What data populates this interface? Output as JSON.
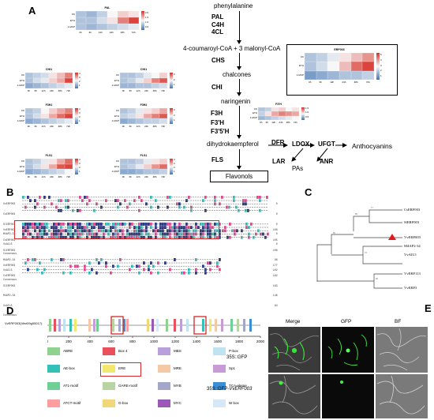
{
  "panels": {
    "A": "A",
    "B": "B",
    "C": "C",
    "D": "D",
    "E": "E"
  },
  "pathway": {
    "phenylalanine": "phenylalanine",
    "enz1": [
      "PAL",
      "C4H",
      "4CL"
    ],
    "coumaroyl": "4-coumaroyl-CoA + 3 malonyl-CoA",
    "chs": "CHS",
    "chalcones": "chalcones",
    "chi": "CHI",
    "naringenin": "naringenin",
    "enz2": [
      "F3H",
      "F3'H",
      "F3'5'H"
    ],
    "dihydro": "dihydrokaempferol",
    "fls": "FLS",
    "flavonols": "Flavonols",
    "dfr": "DFR",
    "ldox": "LDOX",
    "ufgt": "UFGT",
    "anthocyanins": "Anthocyanins",
    "lar": "LAR",
    "anr": "ANR",
    "pas": "PAs"
  },
  "heatmaps": [
    {
      "title": "PAL",
      "rows": [
        "CK",
        "ETH",
        "1-MCP"
      ],
      "xt": [
        "0h",
        "6h",
        "12h",
        "24h",
        "48h",
        "72h"
      ],
      "cb": [
        "2.0",
        "1.5",
        "1.0",
        "0.5"
      ],
      "v": [
        [
          0.3,
          0.25,
          0.35,
          0.5,
          0.6,
          0.55
        ],
        [
          0.3,
          0.3,
          0.4,
          0.55,
          0.8,
          0.95
        ],
        [
          0.3,
          0.25,
          0.3,
          0.35,
          0.4,
          0.45
        ]
      ]
    },
    {
      "title": "CHI1",
      "rows": [
        "CK",
        "ETH",
        "1-MCP"
      ],
      "xt": [
        "0h",
        "6h",
        "12h",
        "24h",
        "48h",
        "72h"
      ],
      "cb": [
        "4",
        "3",
        "2",
        "1"
      ],
      "v": [
        [
          0.3,
          0.35,
          0.4,
          0.55,
          0.65,
          0.8
        ],
        [
          0.3,
          0.4,
          0.45,
          0.6,
          0.7,
          0.95
        ],
        [
          0.2,
          0.25,
          0.3,
          0.35,
          0.4,
          0.45
        ]
      ]
    },
    {
      "title": "CHI1",
      "rows": [
        "CK",
        "ETH",
        "1-MCP"
      ],
      "xt": [
        "0h",
        "6h",
        "12h",
        "24h",
        "48h",
        "72h"
      ],
      "cb": [
        "3",
        "2",
        "1"
      ],
      "v": [
        [
          0.3,
          0.3,
          0.35,
          0.45,
          0.5,
          0.6
        ],
        [
          0.3,
          0.35,
          0.45,
          0.6,
          0.8,
          0.9
        ],
        [
          0.25,
          0.25,
          0.3,
          0.3,
          0.35,
          0.4
        ]
      ]
    },
    {
      "title": "F3H1",
      "rows": [
        "CK",
        "ETH",
        "1-MCP"
      ],
      "xt": [
        "0h",
        "6h",
        "12h",
        "24h",
        "48h",
        "72h"
      ],
      "cb": [
        "4",
        "3",
        "2",
        "1"
      ],
      "v": [
        [
          0.3,
          0.35,
          0.5,
          0.6,
          0.7,
          0.8
        ],
        [
          0.3,
          0.4,
          0.55,
          0.7,
          0.85,
          0.95
        ],
        [
          0.2,
          0.25,
          0.3,
          0.35,
          0.4,
          0.45
        ]
      ]
    },
    {
      "title": "F3H2",
      "rows": [
        "CK",
        "ETH",
        "1-MCP"
      ],
      "xt": [
        "0h",
        "6h",
        "12h",
        "24h",
        "48h",
        "72h"
      ],
      "cb": [
        "3",
        "2",
        "1"
      ],
      "v": [
        [
          0.3,
          0.35,
          0.45,
          0.55,
          0.6,
          0.7
        ],
        [
          0.35,
          0.4,
          0.55,
          0.7,
          0.8,
          0.9
        ],
        [
          0.2,
          0.25,
          0.3,
          0.35,
          0.35,
          0.4
        ]
      ]
    },
    {
      "title": "F3'H",
      "rows": [
        "CK",
        "ETH",
        "1-MCP"
      ],
      "xt": [
        "0h",
        "6h",
        "12h",
        "24h",
        "48h",
        "72h"
      ],
      "cb": [
        "1.5",
        "1.0",
        "0.5"
      ],
      "v": [
        [
          0.3,
          0.35,
          0.55,
          0.6,
          0.5,
          0.55
        ],
        [
          0.35,
          0.55,
          0.7,
          0.8,
          0.75,
          0.7
        ],
        [
          0.25,
          0.3,
          0.35,
          0.4,
          0.45,
          0.5
        ]
      ]
    },
    {
      "title": "FLS1",
      "rows": [
        "CK",
        "ETH",
        "1-MCP"
      ],
      "xt": [
        "0h",
        "6h",
        "12h",
        "24h",
        "48h",
        "72h"
      ],
      "cb": [
        "4",
        "3",
        "2",
        "1"
      ],
      "v": [
        [
          0.3,
          0.35,
          0.45,
          0.55,
          0.7,
          0.85
        ],
        [
          0.3,
          0.4,
          0.55,
          0.7,
          0.9,
          0.95
        ],
        [
          0.2,
          0.25,
          0.3,
          0.35,
          0.4,
          0.5
        ]
      ]
    },
    {
      "title": "FLS1",
      "rows": [
        "CK",
        "ETH",
        "1-MCP"
      ],
      "xt": [
        "0h",
        "6h",
        "12h",
        "24h",
        "48h",
        "72h"
      ],
      "cb": [
        "4",
        "3",
        "2",
        "1"
      ],
      "v": [
        [
          0.3,
          0.3,
          0.35,
          0.45,
          0.55,
          0.6
        ],
        [
          0.3,
          0.35,
          0.45,
          0.6,
          0.75,
          0.85
        ],
        [
          0.2,
          0.2,
          0.25,
          0.3,
          0.3,
          0.35
        ]
      ]
    },
    {
      "title": "ERF003",
      "rows": [
        "CK",
        "ETH",
        "1-MCP"
      ],
      "xt": [
        "0h",
        "6h",
        "12h",
        "24h",
        "48h",
        "72h"
      ],
      "cb": [
        "5",
        "4",
        "3",
        "2",
        "1"
      ],
      "v": [
        [
          0.3,
          0.35,
          0.45,
          0.55,
          0.65,
          0.75
        ],
        [
          0.3,
          0.4,
          0.5,
          0.65,
          0.85,
          0.95
        ],
        [
          0.15,
          0.2,
          0.25,
          0.3,
          0.3,
          0.35
        ]
      ]
    }
  ],
  "alignment": {
    "names": [
      "VvERF003",
      "CsERF003",
      "SlERF003",
      "M4AP2-34",
      "VvAIL5",
      "Consensus"
    ],
    "ends1": [
      "0",
      "0",
      "0",
      "0",
      "0"
    ],
    "ends2": [
      "108",
      "105",
      "108",
      "96",
      "102"
    ],
    "ends3": [
      "177",
      "162",
      "183",
      "146",
      "84"
    ]
  },
  "tree": {
    "tips": [
      "CsERF003",
      "SlERF003",
      "VvERF003",
      "M4AP2-34",
      "VvAIL5",
      "VvERF113",
      "VvERF3"
    ],
    "bootstraps": [
      "77",
      "85",
      "99",
      "73",
      "96"
    ]
  },
  "promoter": {
    "label": "VvERF003(Vitvi09g00017)",
    "axis": [
      "0",
      "200",
      "400",
      "600",
      "800",
      "1000",
      "1200",
      "1400",
      "1600",
      "1800",
      "2000"
    ],
    "legend": [
      "ABRE",
      "Box 4",
      "MBS",
      "P-box",
      "AE-box",
      "ERE",
      "MRE",
      "Sp1",
      "AT1-motif",
      "GARE-motif",
      "MYB",
      "TCA-eleme",
      "ATCT-motif",
      "G-box",
      "MYC",
      "W box"
    ],
    "legend_colors": [
      "#8fd18f",
      "#e8505b",
      "#b9a0d8",
      "#bfe3f0",
      "#33c1b7",
      "#f2e86d",
      "#f3c9a6",
      "#c89ad6",
      "#6fcf97",
      "#b8d4a3",
      "#a4a7c9",
      "#3d8fd4",
      "#ff9e9e",
      "#f0d77a",
      "#9b59b6",
      "#d6e8f7"
    ]
  },
  "microscopy": {
    "cols": [
      "Merge",
      "GFP",
      "BF"
    ],
    "row1": "35S::GFP",
    "row2_prefix": "35S::GFP-",
    "row2_gene": "VvERF003"
  }
}
